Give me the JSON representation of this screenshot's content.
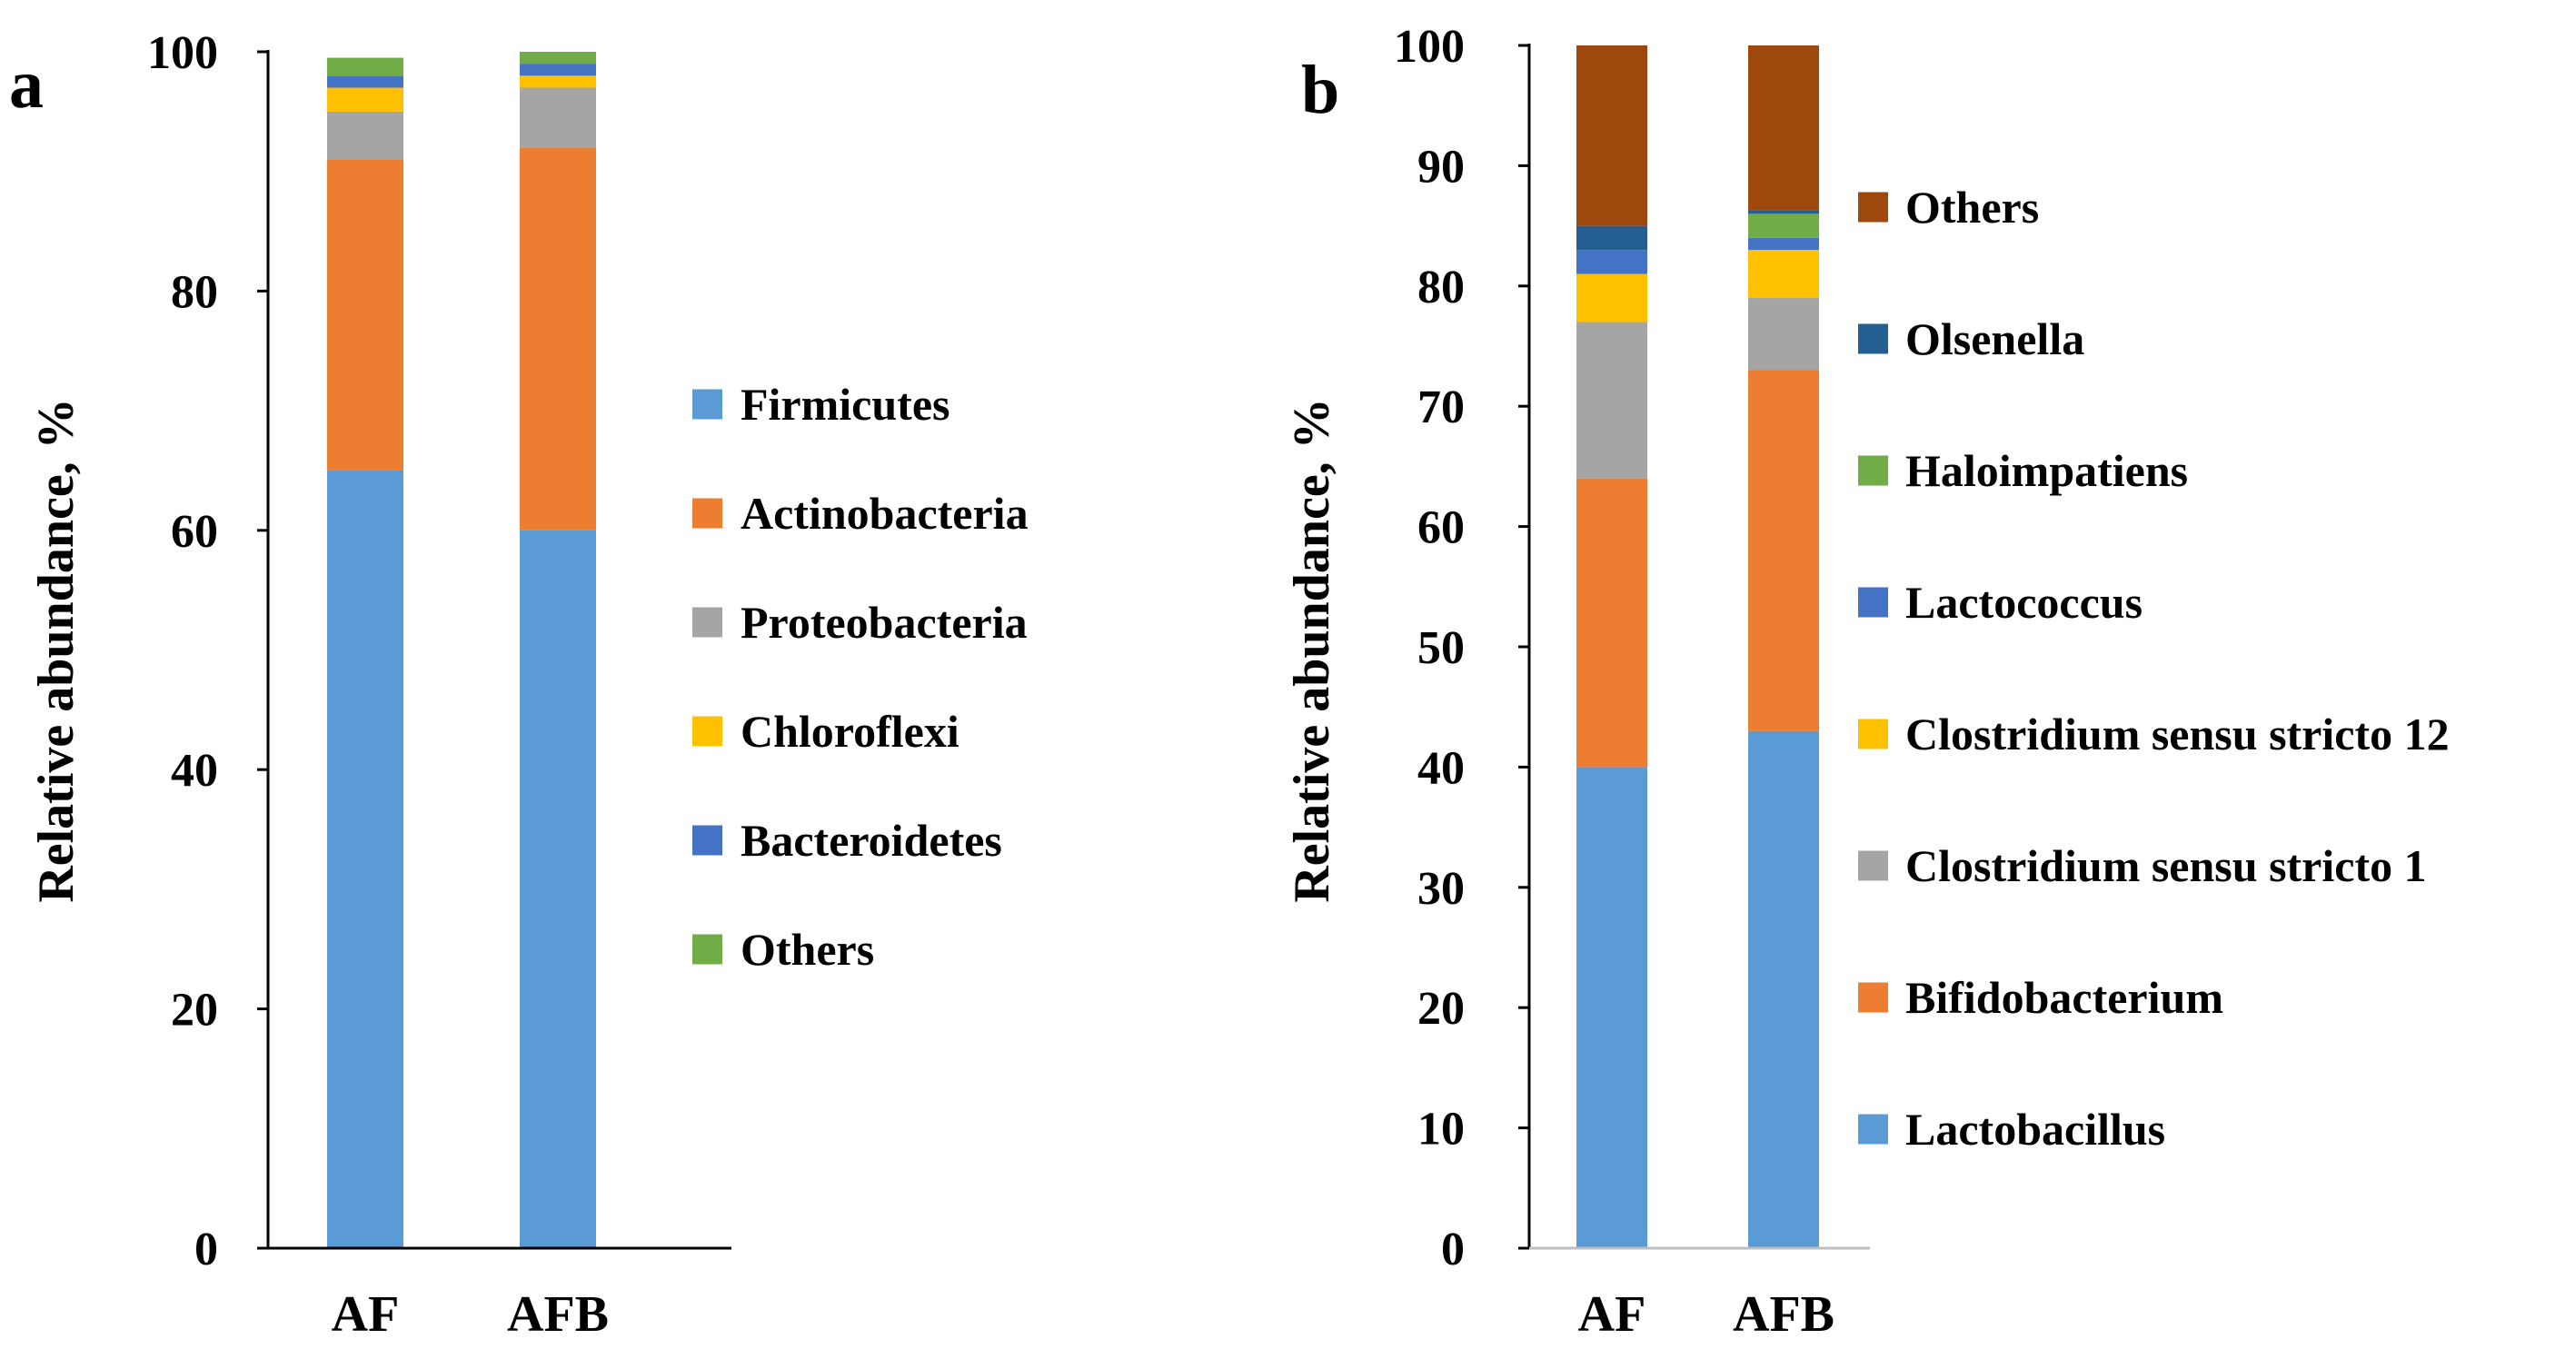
{
  "chart_data": [
    {
      "panel_label": "a",
      "type": "bar",
      "stacked": true,
      "categories": [
        "AF",
        "AFB"
      ],
      "ylabel": "Relative abundance, %",
      "xlabel": "",
      "ylim": [
        0,
        100
      ],
      "yticks": [
        0,
        20,
        40,
        60,
        80,
        100
      ],
      "grid": false,
      "legend": "right",
      "legend_order": [
        "Firmicutes",
        "Actinobacteria",
        "Proteobacteria",
        "Chloroflexi",
        "Bacteroidetes",
        "Others"
      ],
      "series": [
        {
          "name": "Firmicutes",
          "color": "#5B9BD5",
          "values": [
            65,
            60
          ]
        },
        {
          "name": "Actinobacteria",
          "color": "#ED7D31",
          "values": [
            26,
            32
          ]
        },
        {
          "name": "Proteobacteria",
          "color": "#A5A5A5",
          "values": [
            4,
            5
          ]
        },
        {
          "name": "Chloroflexi",
          "color": "#FFC000",
          "values": [
            2,
            1
          ]
        },
        {
          "name": "Bacteroidetes",
          "color": "#4472C4",
          "values": [
            1,
            1
          ]
        },
        {
          "name": "Others",
          "color": "#70AD47",
          "values": [
            1.5,
            1
          ]
        }
      ]
    },
    {
      "panel_label": "b",
      "type": "bar",
      "stacked": true,
      "categories": [
        "AF",
        "AFB"
      ],
      "ylabel": "Relative abundance, %",
      "xlabel": "",
      "ylim": [
        0,
        100
      ],
      "yticks": [
        0,
        10,
        20,
        30,
        40,
        50,
        60,
        70,
        80,
        90,
        100
      ],
      "grid": false,
      "legend": "right",
      "legend_order": [
        "Others",
        "Olsenella",
        "Haloimpatiens",
        "Lactococcus",
        "Clostridium sensu stricto 12",
        "Clostridium sensu stricto 1",
        "Bifidobacterium",
        "Lactobacillus"
      ],
      "series": [
        {
          "name": "Lactobacillus",
          "color": "#5B9BD5",
          "values": [
            40,
            43
          ]
        },
        {
          "name": "Bifidobacterium",
          "color": "#ED7D31",
          "values": [
            24,
            30
          ]
        },
        {
          "name": "Clostridium sensu stricto 1",
          "color": "#A5A5A5",
          "values": [
            13,
            6
          ]
        },
        {
          "name": "Clostridium sensu stricto 12",
          "color": "#FFC000",
          "values": [
            4,
            4
          ]
        },
        {
          "name": "Lactococcus",
          "color": "#4472C4",
          "values": [
            2,
            1
          ]
        },
        {
          "name": "Haloimpatiens",
          "color": "#70AD47",
          "values": [
            0,
            2
          ]
        },
        {
          "name": "Olsenella",
          "color": "#255E91",
          "values": [
            2,
            0.3
          ]
        },
        {
          "name": "Others",
          "color": "#9E480E",
          "values": [
            15,
            13.7
          ]
        }
      ]
    }
  ]
}
